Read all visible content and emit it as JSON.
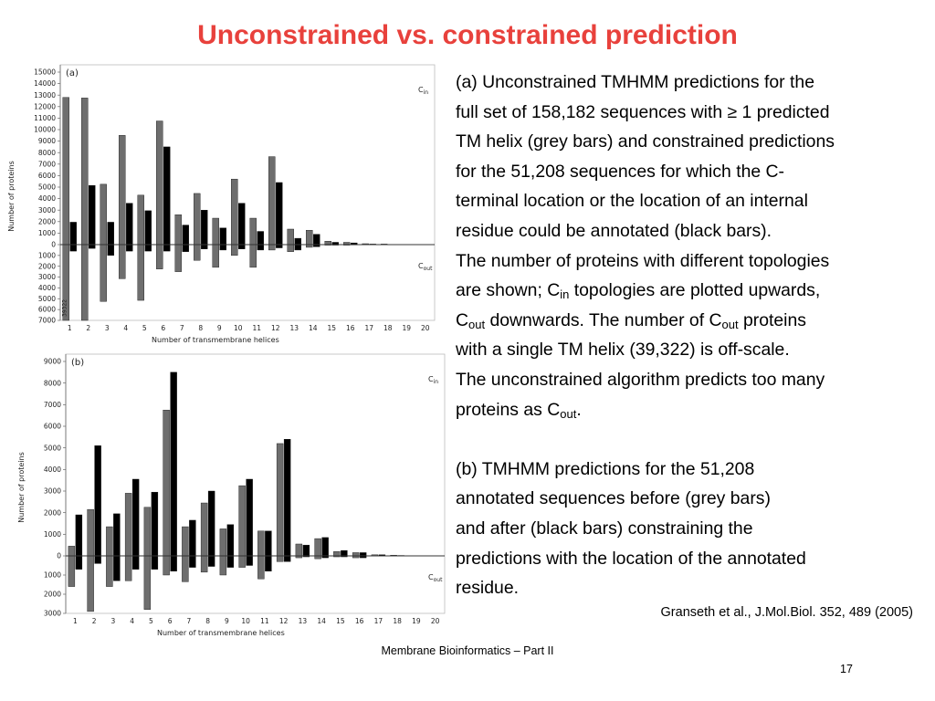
{
  "slide": {
    "title": "Unconstrained vs. constrained prediction",
    "footer": "Membrane Bioinformatics – Part II",
    "page_number": "17",
    "citation": "Granseth et al., J.Mol.Biol. 352, 489 (2005)"
  },
  "description": {
    "a_lines": [
      "(a) Unconstrained TMHMM predictions for the",
      "full set of 158,182 sequences with ≥ 1 predicted",
      "TM helix (grey bars) and constrained predictions",
      "for the 51,208 sequences for which the C-",
      "terminal location or the location of an internal",
      "residue could be annotated (black bars).",
      "The number of proteins with different topologies"
    ],
    "a_line_8": {
      "pre": "are shown;  C",
      "sub": "in",
      "post": " topologies are plotted upwards,"
    },
    "a_line_9": {
      "c1": "C",
      "sub1": "out",
      "mid": " downwards. The number of C",
      "sub2": "out",
      "post": " proteins"
    },
    "a_line_10": "with a single TM helix (39,322) is off-scale.",
    "a_line_11": "The unconstrained algorithm predicts too many",
    "a_line_12": {
      "pre": "proteins as C",
      "sub": "out",
      "post": "."
    },
    "b_lines": [
      "(b) TMHMM predictions for the 51,208",
      "annotated sequences before (grey bars)",
      "and after (black bars) constraining the",
      "predictions with the location of the annotated",
      "residue."
    ]
  },
  "chart_data": [
    {
      "panel": "(a)",
      "type": "bar",
      "orientation": "diverging",
      "ylabel": "Number of proteins",
      "xlabel": "Number of transmembrane helices",
      "label_up": "C",
      "label_up_sub": "in",
      "label_down": "C",
      "label_down_sub": "out",
      "upper_ticks": [
        0,
        1000,
        2000,
        3000,
        4000,
        5000,
        6000,
        7000,
        8000,
        9000,
        10000,
        11000,
        12000,
        13000,
        14000,
        15000
      ],
      "lower_ticks": [
        1000,
        2000,
        3000,
        4000,
        5000,
        6000,
        7000
      ],
      "upper_max": 15000,
      "lower_max": 7000,
      "categories": [
        1,
        2,
        3,
        4,
        5,
        6,
        7,
        8,
        9,
        10,
        11,
        12,
        13,
        14,
        15,
        16,
        17,
        18,
        19,
        20
      ],
      "offscale_label": "39322",
      "series": [
        {
          "name": "grey bars",
          "color": "#6e6e6e",
          "cin": [
            12800,
            12750,
            5250,
            9500,
            4300,
            10750,
            2600,
            4450,
            2300,
            5700,
            2300,
            7650,
            1350,
            1250,
            300,
            200,
            80,
            50,
            20,
            10
          ],
          "cout": [
            39322,
            7000,
            5250,
            3150,
            5150,
            2250,
            2500,
            1450,
            2100,
            1000,
            2100,
            500,
            650,
            250,
            50,
            50,
            20,
            20,
            10,
            0
          ]
        },
        {
          "name": "black bars",
          "color": "#000000",
          "cin": [
            1950,
            5150,
            1950,
            3600,
            2950,
            8500,
            1700,
            3000,
            1450,
            3600,
            1150,
            5400,
            550,
            900,
            200,
            150,
            50,
            20,
            10,
            0
          ],
          "cout": [
            600,
            350,
            1000,
            600,
            600,
            600,
            650,
            400,
            500,
            400,
            500,
            300,
            500,
            200,
            50,
            30,
            10,
            10,
            0,
            0
          ]
        }
      ]
    },
    {
      "panel": "(b)",
      "type": "bar",
      "orientation": "diverging",
      "ylabel": "Number of proteins",
      "xlabel": "Number of transmembrane helices",
      "label_up": "C",
      "label_up_sub": "in",
      "label_down": "C",
      "label_down_sub": "out",
      "upper_ticks": [
        0,
        1000,
        2000,
        3000,
        4000,
        5000,
        6000,
        7000,
        8000,
        9000
      ],
      "lower_ticks": [
        1000,
        2000,
        3000
      ],
      "upper_max": 9000,
      "lower_max": 3000,
      "categories": [
        1,
        2,
        3,
        4,
        5,
        6,
        7,
        8,
        9,
        10,
        11,
        12,
        13,
        14,
        15,
        16,
        17,
        18,
        19,
        20
      ],
      "series": [
        {
          "name": "grey bars",
          "color": "#6e6e6e",
          "cin": [
            450,
            2150,
            1350,
            2900,
            2250,
            6750,
            1350,
            2450,
            1250,
            3250,
            1150,
            5200,
            550,
            800,
            200,
            150,
            50,
            30,
            10,
            0
          ],
          "cout": [
            1600,
            2900,
            1600,
            1300,
            2800,
            1000,
            1350,
            850,
            1000,
            600,
            1200,
            300,
            100,
            150,
            50,
            100,
            10,
            10,
            0,
            0
          ]
        },
        {
          "name": "black bars",
          "color": "#000000",
          "cin": [
            1900,
            5100,
            1950,
            3550,
            2950,
            8500,
            1650,
            3000,
            1450,
            3550,
            1150,
            5400,
            500,
            850,
            250,
            150,
            50,
            20,
            10,
            0
          ],
          "cout": [
            700,
            400,
            1300,
            700,
            700,
            800,
            600,
            550,
            600,
            500,
            800,
            300,
            50,
            100,
            50,
            100,
            10,
            10,
            0,
            0
          ]
        }
      ]
    }
  ]
}
